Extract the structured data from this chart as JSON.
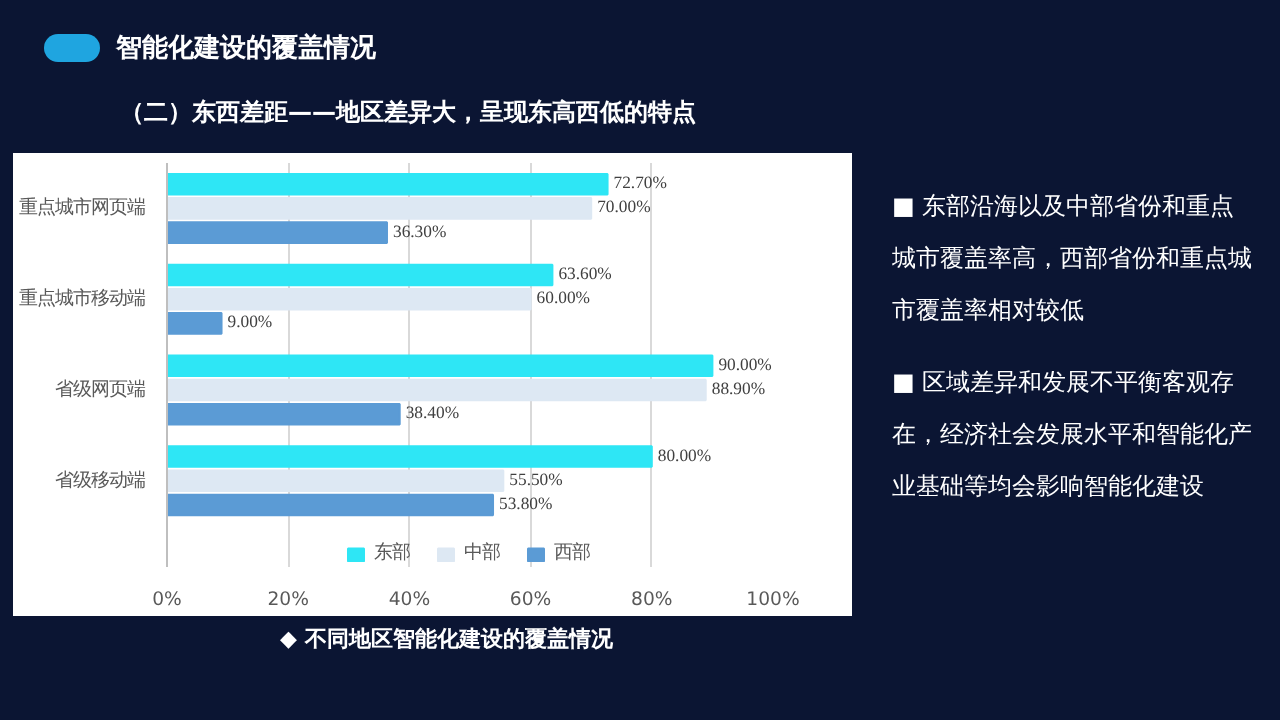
{
  "chart_data": {
    "type": "bar",
    "orientation": "horizontal",
    "title": "智能化建设的覆盖情况",
    "subtitle": "（二）东西差距——地区差异大，呈现东高西低的特点",
    "categories": [
      "重点城市网页端",
      "重点城市移动端",
      "省级网页端",
      "省级移动端"
    ],
    "series": [
      {
        "name": "东部",
        "color": "#2ee6f5",
        "values": [
          72.7,
          63.6,
          90.0,
          80.0
        ],
        "value_labels": [
          "72.70%",
          "63.60%",
          "90.00%",
          "80.00%"
        ]
      },
      {
        "name": "中部",
        "color": "#dde8f3",
        "values": [
          70.0,
          60.0,
          88.9,
          55.5
        ],
        "value_labels": [
          "70.00%",
          "60.00%",
          "88.90%",
          "55.50%"
        ]
      },
      {
        "name": "西部",
        "color": "#5b9bd5",
        "values": [
          36.3,
          9.0,
          38.4,
          53.8
        ],
        "value_labels": [
          "36.30%",
          "9.00%",
          "38.40%",
          "53.80%"
        ]
      }
    ],
    "xlim": [
      0,
      100
    ],
    "xticks": [
      {
        "value": 0,
        "label": "0%"
      },
      {
        "value": 20,
        "label": "20%"
      },
      {
        "value": 40,
        "label": "40%"
      },
      {
        "value": 60,
        "label": "60%"
      },
      {
        "value": 80,
        "label": "80%"
      },
      {
        "value": 100,
        "label": "100%"
      }
    ],
    "grid": "x",
    "legend": "bottom",
    "annotations": [
      "■ 东部沿海以及中部省份和重点城市覆盖率高，西部省份和重点城市覆盖率相对较低",
      "■ 区域差异和发展不平衡客观存在，经济社会发展水平和智能化产业基础等均会影响智能化建设",
      "◆ 不同地区智能化建设的覆盖情况"
    ]
  }
}
